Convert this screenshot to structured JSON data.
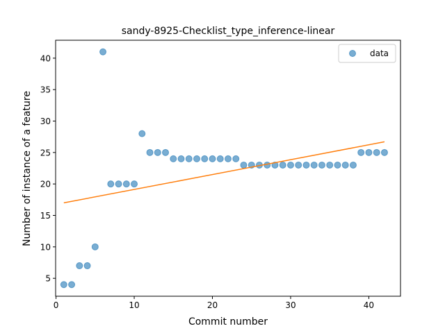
{
  "chart_data": {
    "type": "scatter",
    "title": "sandy-8925-Checklist_type_inference-linear",
    "xlabel": "Commit number",
    "ylabel": "Number of instance of a feature",
    "xlim": [
      -0.05,
      44.05
    ],
    "ylim": [
      2.15,
      42.85
    ],
    "xticks": [
      0,
      10,
      20,
      30,
      40
    ],
    "yticks": [
      5,
      10,
      15,
      20,
      25,
      30,
      35,
      40
    ],
    "grid": false,
    "legend_position": "top-right",
    "colors": {
      "data": "#1f77b4",
      "fit": "#ff7f0e"
    },
    "series": [
      {
        "name": "data",
        "kind": "scatter",
        "x": [
          1,
          2,
          3,
          4,
          5,
          6,
          7,
          8,
          9,
          10,
          11,
          12,
          13,
          14,
          15,
          16,
          17,
          18,
          19,
          20,
          21,
          22,
          23,
          24,
          25,
          26,
          27,
          28,
          29,
          30,
          31,
          32,
          33,
          34,
          35,
          36,
          37,
          38,
          39,
          40,
          41,
          42
        ],
        "y": [
          4,
          4,
          7,
          7,
          10,
          41,
          20,
          20,
          20,
          20,
          28,
          25,
          25,
          25,
          24,
          24,
          24,
          24,
          24,
          24,
          24,
          24,
          24,
          23,
          23,
          23,
          23,
          23,
          23,
          23,
          23,
          23,
          23,
          23,
          23,
          23,
          23,
          23,
          25,
          25,
          25,
          25
        ]
      },
      {
        "kind": "line",
        "x": [
          1,
          42
        ],
        "y": [
          17.0,
          26.7
        ]
      }
    ]
  }
}
